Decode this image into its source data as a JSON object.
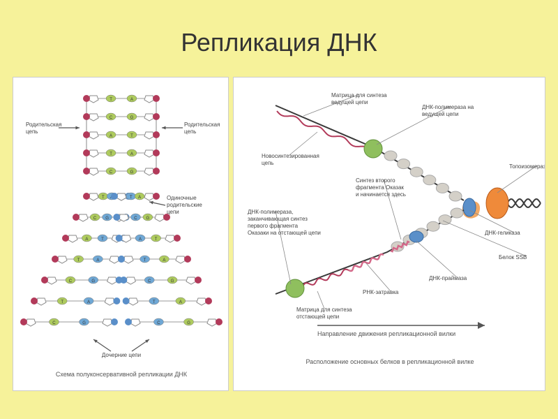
{
  "colors": {
    "bg": "#f6f29a",
    "panel_bg": "#ffffff",
    "title_text": "#333333",
    "parent_strand": "#c94a6a",
    "daughter_strand": "#5a8fc9",
    "base_green": "#aecb5e",
    "base_blue": "#6fa8d6",
    "terminal_dot": "#b23a5a",
    "arrow": "#555555",
    "helicase": "#5a8fc9",
    "primase": "#ef9a4a",
    "topoisomerase": "#ef8a3a",
    "polymerase": "#8fbf5e",
    "ssb": "#d4d0c8",
    "rna_primer": "#d46a8a",
    "new_dna": "#b23a5a",
    "parent_helix": "#3a3a3a",
    "label_text": "#555555"
  },
  "title": "Репликация ДНК",
  "left": {
    "caption": "Схема полуконсервативной репликации ДНК",
    "label_parent_left": "Родительская цепь",
    "label_parent_right": "Родительская цепь",
    "label_single_parent": "Одиночные родительские цепи",
    "label_daughter": "Дочерние цепи",
    "bases": [
      "T",
      "A",
      "C",
      "G",
      "A",
      "T",
      "T",
      "A",
      "C",
      "G"
    ]
  },
  "right": {
    "caption": "Расположение основных белков в репликационной вилке",
    "label_leading_template": "Матрица для синтеза ведущей цепи",
    "label_polymerase_leading": "ДНК-полимераза на ведущей цепи",
    "label_new_strand": "Новосинтезированная цепь",
    "label_topoisomerase": "Топоизомераза",
    "label_second_okazaki": "Синтез второго фрагмента Оказаки начинается здесь",
    "label_polymerase_lagging": "ДНК-полимераза, заканчивающая синтез первого фрагмента Оказаки на отстающей цепи",
    "label_helicase": "ДНК-геликаза",
    "label_ssb": "Белок SSB",
    "label_primase": "ДНК-праймаза",
    "label_rna_primer": "РНК-затравка",
    "label_lagging_template": "Матрица для синтеза отстающей цепи",
    "label_fork_direction": "Направление движения репликационной вилки"
  }
}
